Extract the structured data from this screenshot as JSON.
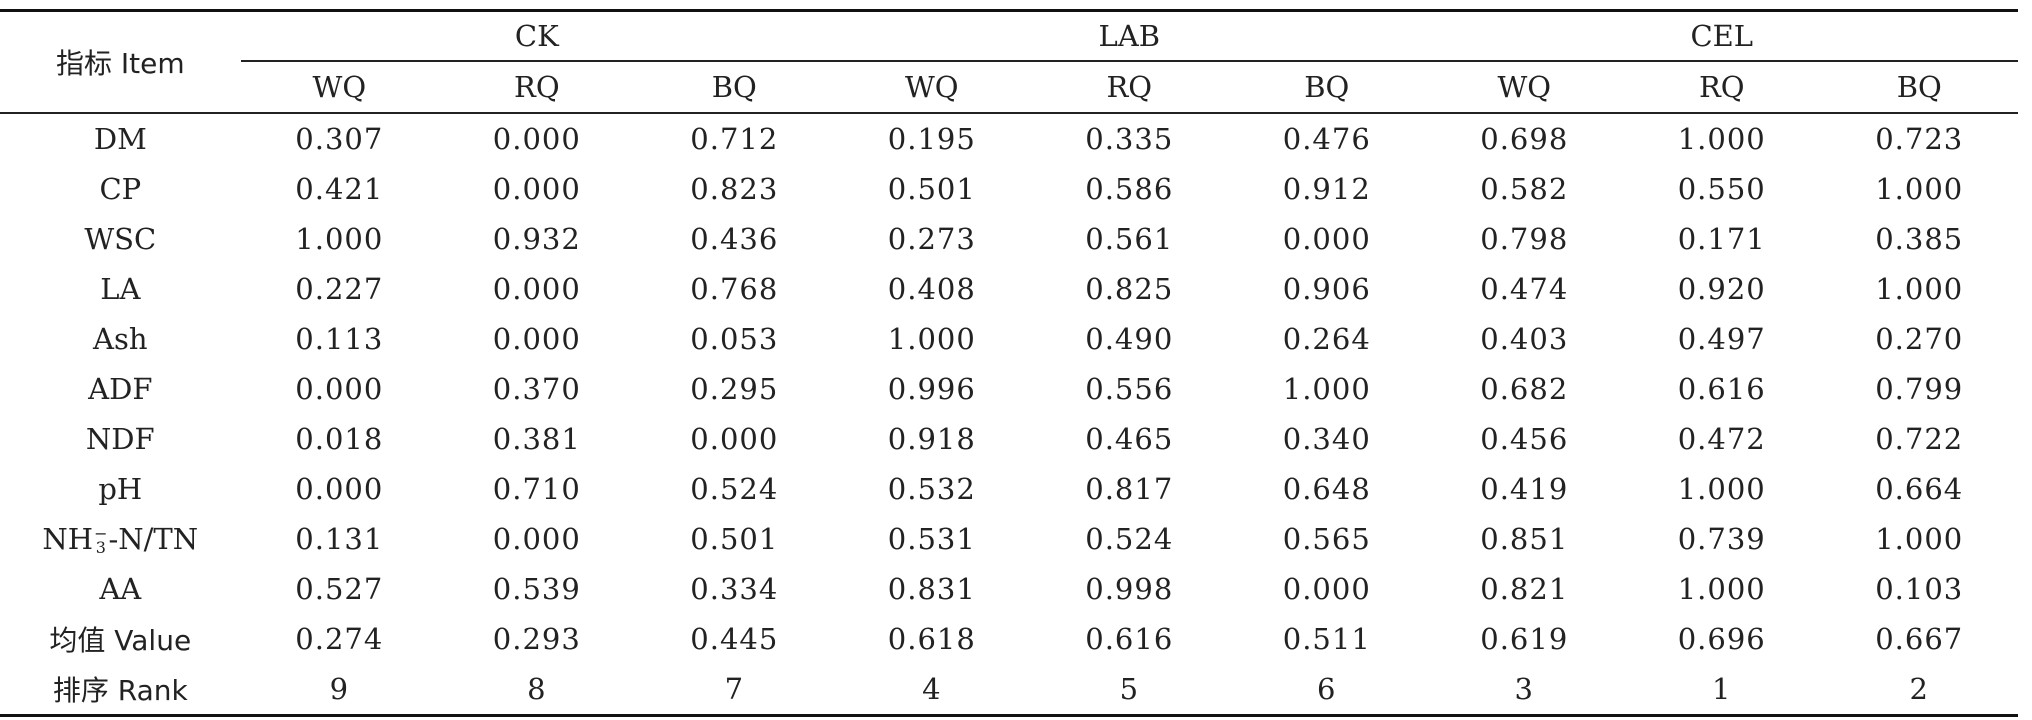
{
  "header": {
    "item": "指标 Item",
    "groups": [
      "CK",
      "LAB",
      "CEL"
    ],
    "subcols": [
      "WQ",
      "RQ",
      "BQ",
      "WQ",
      "RQ",
      "BQ",
      "WQ",
      "RQ",
      "BQ"
    ]
  },
  "rows": [
    {
      "label": "DM",
      "values": [
        "0.307",
        "0.000",
        "0.712",
        "0.195",
        "0.335",
        "0.476",
        "0.698",
        "1.000",
        "0.723"
      ]
    },
    {
      "label": "CP",
      "values": [
        "0.421",
        "0.000",
        "0.823",
        "0.501",
        "0.586",
        "0.912",
        "0.582",
        "0.550",
        "1.000"
      ]
    },
    {
      "label": "WSC",
      "values": [
        "1.000",
        "0.932",
        "0.436",
        "0.273",
        "0.561",
        "0.000",
        "0.798",
        "0.171",
        "0.385"
      ]
    },
    {
      "label": "LA",
      "values": [
        "0.227",
        "0.000",
        "0.768",
        "0.408",
        "0.825",
        "0.906",
        "0.474",
        "0.920",
        "1.000"
      ]
    },
    {
      "label": "Ash",
      "values": [
        "0.113",
        "0.000",
        "0.053",
        "1.000",
        "0.490",
        "0.264",
        "0.403",
        "0.497",
        "0.270"
      ]
    },
    {
      "label": "ADF",
      "values": [
        "0.000",
        "0.370",
        "0.295",
        "0.996",
        "0.556",
        "1.000",
        "0.682",
        "0.616",
        "0.799"
      ]
    },
    {
      "label": "NDF",
      "values": [
        "0.018",
        "0.381",
        "0.000",
        "0.918",
        "0.465",
        "0.340",
        "0.456",
        "0.472",
        "0.722"
      ]
    },
    {
      "label": "pH",
      "values": [
        "0.000",
        "0.710",
        "0.524",
        "0.532",
        "0.817",
        "0.648",
        "0.419",
        "1.000",
        "0.664"
      ]
    },
    {
      "label_parts": {
        "base": "NH",
        "sup": "−",
        "sub": "3",
        "rest": "-N/TN"
      },
      "values": [
        "0.131",
        "0.000",
        "0.501",
        "0.531",
        "0.524",
        "0.565",
        "0.851",
        "0.739",
        "1.000"
      ]
    },
    {
      "label": "AA",
      "values": [
        "0.527",
        "0.539",
        "0.334",
        "0.831",
        "0.998",
        "0.000",
        "0.821",
        "1.000",
        "0.103"
      ]
    },
    {
      "label": "均值 Value",
      "values": [
        "0.274",
        "0.293",
        "0.445",
        "0.618",
        "0.616",
        "0.511",
        "0.619",
        "0.696",
        "0.667"
      ]
    },
    {
      "label": "排序 Rank",
      "values": [
        "9",
        "8",
        "7",
        "4",
        "5",
        "6",
        "3",
        "1",
        "2"
      ]
    }
  ]
}
